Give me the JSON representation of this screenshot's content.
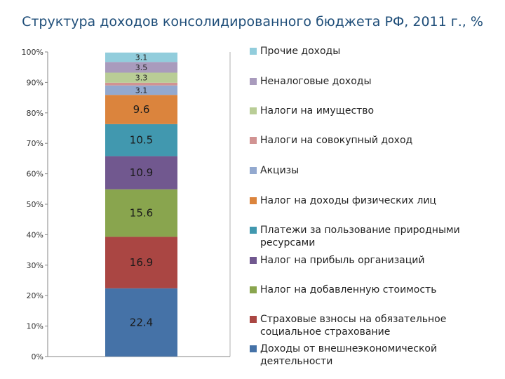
{
  "chart_data": {
    "type": "bar",
    "stacked": true,
    "title": "Структура доходов консолидированного бюджета РФ, 2011 г., %",
    "ylim": [
      0,
      100
    ],
    "y_ticks": [
      "0%",
      "10%",
      "20%",
      "30%",
      "40%",
      "50%",
      "60%",
      "70%",
      "80%",
      "90%",
      "100%"
    ],
    "series": [
      {
        "name": "Доходы от внешнеэкономической деятельности",
        "value": 22.4,
        "label": "22.4",
        "color": "#4572a7"
      },
      {
        "name": "Страховые взносы на обязательное социальное страхование",
        "value": 16.9,
        "label": "16.9",
        "color": "#aa4643"
      },
      {
        "name": "Налог на добавленную стоимость",
        "value": 15.6,
        "label": "15.6",
        "color": "#89a54e"
      },
      {
        "name": "Налог на прибыль организаций",
        "value": 10.9,
        "label": "10.9",
        "color": "#71588f"
      },
      {
        "name": "Платежи за пользование природными ресурсами",
        "value": 10.5,
        "label": "10.5",
        "color": "#4198af"
      },
      {
        "name": "Налог на доходы физических лиц",
        "value": 9.6,
        "label": "9.6",
        "color": "#db843d"
      },
      {
        "name": "Акцизы",
        "value": 3.1,
        "label": "3.1",
        "color": "#93a9cf"
      },
      {
        "name": "Налоги на совокупный доход",
        "value": 0.9,
        "label": "",
        "color": "#d19392"
      },
      {
        "name": "Налоги на имущество",
        "value": 3.3,
        "label": "3.3",
        "color": "#b9cd96"
      },
      {
        "name": "Неналоговые доходы",
        "value": 3.5,
        "label": "3.5",
        "color": "#a99bbd"
      },
      {
        "name": "Прочие доходы",
        "value": 3.1,
        "label": "3.1",
        "color": "#92cddc"
      }
    ]
  }
}
